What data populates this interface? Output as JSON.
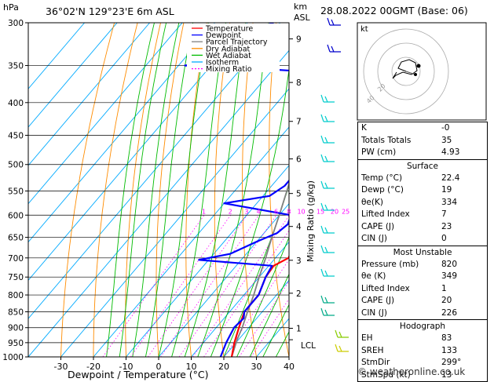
{
  "header": {
    "unit_p": "hPa",
    "location": "36°02'N 129°23'E 6m ASL",
    "unit_km": "km",
    "unit_asl": "ASL",
    "datetime": "28.08.2022 00GMT (Base: 06)"
  },
  "legend": [
    "Temperature",
    "Dewpoint",
    "Parcel Trajectory",
    "Dry Adiabat",
    "Wet Adiabat",
    "Isotherm",
    "Mixing Ratio"
  ],
  "colors": {
    "temperature": "#ff0000",
    "dewpoint": "#0000ff",
    "parcel": "#808080",
    "dry_adiabat": "#ff8c00",
    "wet_adiabat": "#00bb00",
    "isotherm": "#00aaff",
    "mixing_ratio": "#ff00ff",
    "wind": "#00cccc"
  },
  "axes": {
    "xlabel": "Dewpoint / Temperature (°C)",
    "ylabel_right": "Mixing Ratio (g/kg)",
    "lcl_label": "LCL"
  },
  "chart_data": {
    "type": "line",
    "pressure_ticks": [
      300,
      350,
      400,
      450,
      500,
      550,
      600,
      650,
      700,
      750,
      800,
      850,
      900,
      950,
      1000
    ],
    "temp_ticks": [
      -30,
      -20,
      -10,
      0,
      10,
      20,
      30,
      40
    ],
    "km_ticks": [
      {
        "km": "1",
        "p": 902
      },
      {
        "km": "2",
        "p": 795
      },
      {
        "km": "3",
        "p": 706
      },
      {
        "km": "4",
        "p": 625
      },
      {
        "km": "5",
        "p": 555
      },
      {
        "km": "6",
        "p": 490
      },
      {
        "km": "7",
        "p": 428
      },
      {
        "km": "8",
        "p": 372
      },
      {
        "km": "9",
        "p": 318
      }
    ],
    "lcl_p": 940,
    "mixing_ratio_labels": [
      "1",
      "2",
      "3",
      "4",
      "6",
      "8",
      "10",
      "15",
      "20",
      "25"
    ],
    "series": [
      {
        "name": "Temperature",
        "points": [
          [
            1000,
            22.4
          ],
          [
            950,
            19.5
          ],
          [
            900,
            17
          ],
          [
            850,
            14.5
          ],
          [
            800,
            14.5
          ],
          [
            750,
            12
          ],
          [
            720,
            11.5
          ],
          [
            700,
            14
          ],
          [
            680,
            13
          ],
          [
            650,
            9
          ],
          [
            620,
            7
          ],
          [
            600,
            5
          ],
          [
            550,
            2.5
          ],
          [
            500,
            -2.5
          ],
          [
            450,
            -8
          ],
          [
            420,
            -11
          ],
          [
            400,
            -13
          ],
          [
            370,
            -16
          ],
          [
            350,
            -17
          ]
        ]
      },
      {
        "name": "Dewpoint",
        "points": [
          [
            1000,
            19
          ],
          [
            950,
            17
          ],
          [
            900,
            15.5
          ],
          [
            870,
            16
          ],
          [
            850,
            14.5
          ],
          [
            800,
            14.5
          ],
          [
            750,
            12
          ],
          [
            720,
            11
          ],
          [
            712,
            -2
          ],
          [
            705,
            -13
          ],
          [
            690,
            -5
          ],
          [
            660,
            0
          ],
          [
            640,
            4
          ],
          [
            620,
            5
          ],
          [
            600,
            3.5
          ],
          [
            575,
            -20
          ],
          [
            560,
            -8
          ],
          [
            540,
            -6
          ],
          [
            500,
            -6
          ],
          [
            460,
            -11
          ],
          [
            440,
            -14
          ],
          [
            420,
            -19
          ],
          [
            400,
            -20
          ],
          [
            385,
            -23
          ],
          [
            375,
            -22
          ],
          [
            360,
            -21
          ],
          [
            355,
            -40
          ],
          [
            350,
            -68
          ],
          [
            340,
            -45
          ],
          [
            335,
            -60
          ],
          [
            325,
            -45
          ],
          [
            318,
            -65
          ],
          [
            312,
            -50
          ],
          [
            305,
            -55
          ],
          [
            300,
            -52
          ]
        ]
      },
      {
        "name": "Parcel Trajectory",
        "points": [
          [
            1000,
            22.4
          ],
          [
            940,
            19.6
          ],
          [
            900,
            18
          ],
          [
            850,
            15.5
          ],
          [
            800,
            13
          ],
          [
            750,
            10
          ],
          [
            700,
            7
          ],
          [
            650,
            3.5
          ],
          [
            600,
            0
          ],
          [
            550,
            -4
          ],
          [
            500,
            -8.5
          ],
          [
            450,
            -14
          ],
          [
            400,
            -20
          ],
          [
            350,
            -27
          ],
          [
            300,
            -35
          ]
        ]
      }
    ]
  },
  "indices": {
    "rows": [
      [
        "K",
        "-0"
      ],
      [
        "Totals Totals",
        "35"
      ],
      [
        "PW (cm)",
        "4.93"
      ]
    ]
  },
  "surface": {
    "title": "Surface",
    "rows": [
      [
        "Temp (°C)",
        "22.4"
      ],
      [
        "Dewp (°C)",
        "19"
      ],
      [
        "θe(K)",
        "334"
      ],
      [
        "Lifted Index",
        "7"
      ],
      [
        "CAPE (J)",
        "23"
      ],
      [
        "CIN (J)",
        "0"
      ]
    ]
  },
  "most_unstable": {
    "title": "Most Unstable",
    "rows": [
      [
        "Pressure (mb)",
        "820"
      ],
      [
        "θe (K)",
        "349"
      ],
      [
        "Lifted Index",
        "1"
      ],
      [
        "CAPE (J)",
        "20"
      ],
      [
        "CIN (J)",
        "226"
      ]
    ]
  },
  "hodograph_table": {
    "title": "Hodograph",
    "rows": [
      [
        "EH",
        "83"
      ],
      [
        "SREH",
        "133"
      ],
      [
        "StmDir",
        "299°"
      ],
      [
        "StmSpd (kt)",
        "13"
      ]
    ]
  },
  "hodograph": {
    "unit": "kt",
    "ring_labels": [
      "20",
      "40"
    ]
  },
  "copyright": "© weatheronline.co.uk"
}
